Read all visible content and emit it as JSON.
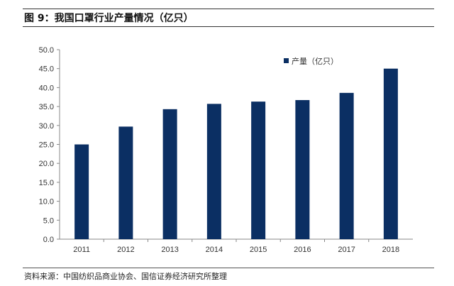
{
  "header": {
    "title": "图 9：我国口罩行业产量情况（亿只）"
  },
  "footer": {
    "source": "资料来源：中国纺织品商业协会、国信证券经济研究所整理"
  },
  "chart_data": {
    "type": "bar",
    "categories": [
      "2011",
      "2012",
      "2013",
      "2014",
      "2015",
      "2016",
      "2017",
      "2018"
    ],
    "series": [
      {
        "name": "产量（亿只）",
        "values": [
          25.0,
          29.7,
          34.3,
          35.7,
          36.3,
          36.7,
          38.6,
          45.0
        ],
        "color": "#0b2f63"
      }
    ],
    "ylim": [
      0,
      50
    ],
    "yticks": [
      "0.0",
      "5.0",
      "10.0",
      "15.0",
      "20.0",
      "25.0",
      "30.0",
      "35.0",
      "40.0",
      "45.0",
      "50.0"
    ],
    "grid": false,
    "legend": "top-right",
    "xlabel": "",
    "ylabel": ""
  }
}
